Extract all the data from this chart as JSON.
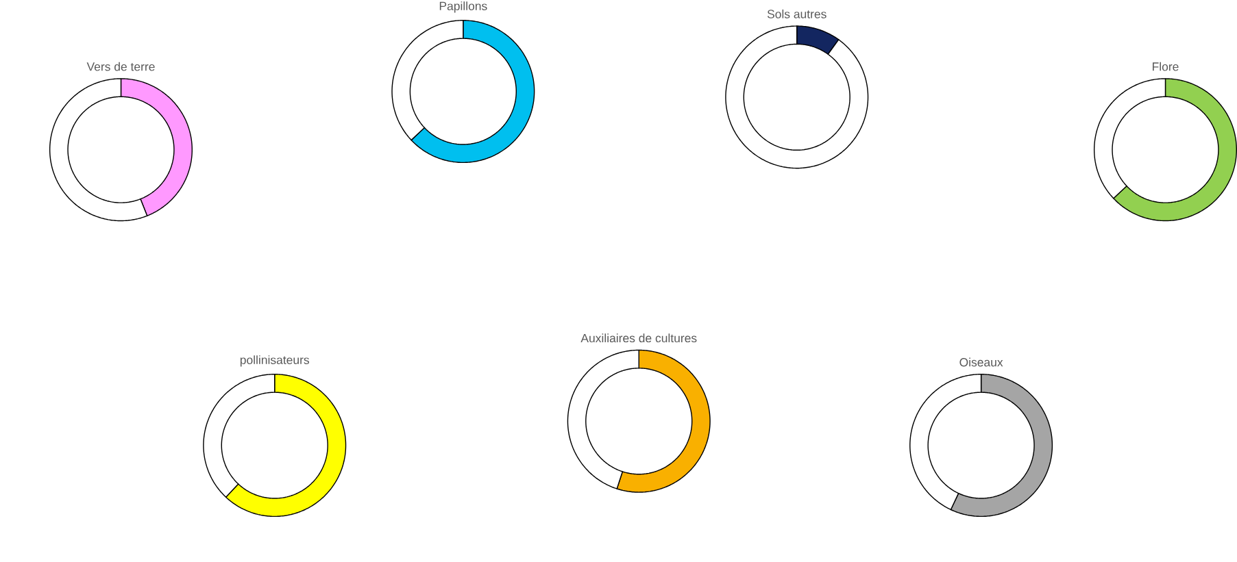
{
  "chart_data": [
    {
      "type": "donut",
      "title": "Vers de terre",
      "categories": [
        null,
        null
      ],
      "values": [
        44,
        56
      ],
      "colors": [
        "#ff99ff",
        "#ffffff"
      ]
    },
    {
      "type": "donut",
      "title": "Papillons",
      "categories": [
        null,
        null
      ],
      "values": [
        63,
        37
      ],
      "colors": [
        "#00bfef",
        "#ffffff"
      ]
    },
    {
      "type": "donut",
      "title": "Sols autres",
      "categories": [
        null,
        null
      ],
      "values": [
        10,
        90
      ],
      "colors": [
        "#132660",
        "#ffffff"
      ]
    },
    {
      "type": "donut",
      "title": "Flore",
      "categories": [
        null,
        null
      ],
      "values": [
        63,
        37
      ],
      "colors": [
        "#92d050",
        "#ffffff"
      ]
    },
    {
      "type": "donut",
      "title": "pollinisateurs",
      "categories": [
        null,
        null
      ],
      "values": [
        62,
        38
      ],
      "colors": [
        "#ffff00",
        "#ffffff"
      ]
    },
    {
      "type": "donut",
      "title": "Auxiliaires de cultures",
      "categories": [
        null,
        null
      ],
      "values": [
        55,
        45
      ],
      "colors": [
        "#f9b000",
        "#ffffff"
      ]
    },
    {
      "type": "donut",
      "title": "Oiseaux",
      "categories": [
        null,
        null
      ],
      "values": [
        57,
        43
      ],
      "colors": [
        "#a5a5a5",
        "#ffffff"
      ]
    }
  ]
}
